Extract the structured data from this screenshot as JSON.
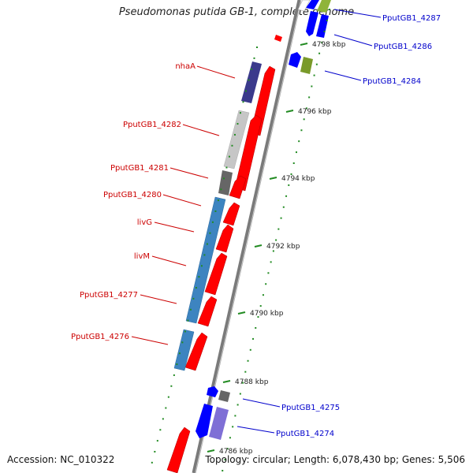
{
  "title": "Pseudomonas putida GB-1, complete genome",
  "footer": {
    "accession": "Accession: NC_010322",
    "topology": "Topology: circular; Length: 6,078,430 bp; Genes: 5,506"
  },
  "colors": {
    "cds_forward": "#ff0000",
    "cds_reverse": "#0000ff",
    "label_left": "#cc0000",
    "label_right": "#0000cc",
    "tick": "#228b22",
    "backbone": "#7a7a7a"
  },
  "ticks": [
    {
      "label": "4798 kbp"
    },
    {
      "label": "4796 kbp"
    },
    {
      "label": "4794 kbp"
    },
    {
      "label": "4792 kbp"
    },
    {
      "label": "4790 kbp"
    },
    {
      "label": "4788 kbp"
    },
    {
      "label": "4786 kbp"
    }
  ],
  "left_labels": [
    {
      "text": "nhaA"
    },
    {
      "text": "PputGB1_4282"
    },
    {
      "text": "PputGB1_4281"
    },
    {
      "text": "PputGB1_4280"
    },
    {
      "text": "livG"
    },
    {
      "text": "livM"
    },
    {
      "text": "PputGB1_4277"
    },
    {
      "text": "PputGB1_4276"
    }
  ],
  "right_labels": [
    {
      "text": "PputGB1_4287"
    },
    {
      "text": "PputGB1_4286"
    },
    {
      "text": "PputGB1_4284"
    },
    {
      "text": "PputGB1_4275"
    },
    {
      "text": "PputGB1_4274"
    }
  ]
}
